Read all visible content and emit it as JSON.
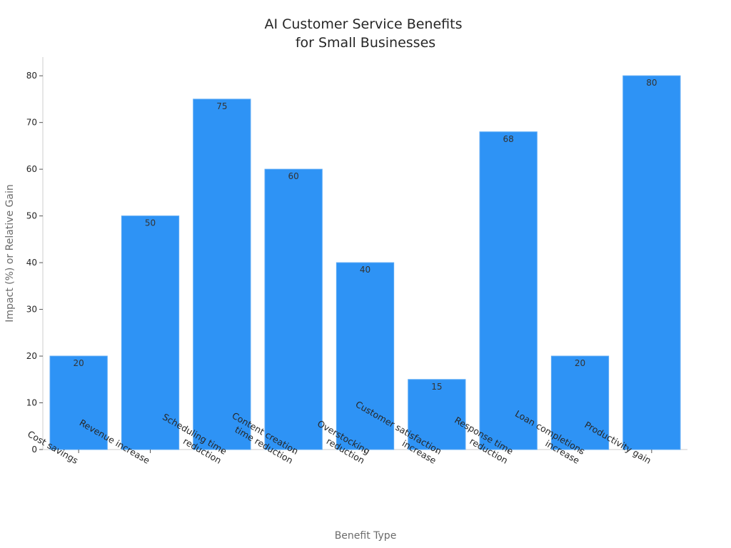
{
  "chart_data": {
    "type": "bar",
    "title": [
      "AI Customer Service Benefits",
      "for Small Businesses"
    ],
    "xlabel": "Benefit Type",
    "ylabel": "Impact (%) or Relative Gain",
    "categories": [
      [
        "Cost savings"
      ],
      [
        "Revenue increase"
      ],
      [
        "Scheduling time",
        "reduction"
      ],
      [
        "Content creation",
        "time reduction"
      ],
      [
        "Overstocking",
        "reduction"
      ],
      [
        "Customer satisfaction",
        "increase"
      ],
      [
        "Response time",
        "reduction"
      ],
      [
        "Loan completions",
        "increase"
      ],
      [
        "Productivity gain"
      ]
    ],
    "values": [
      20,
      50,
      75,
      60,
      40,
      15,
      68,
      20,
      80
    ],
    "value_labels": [
      "20",
      "50",
      "75",
      "60",
      "40",
      "15",
      "68",
      "20",
      "80"
    ],
    "yticks": [
      "0",
      "10",
      "20",
      "30",
      "40",
      "50",
      "60",
      "70",
      "80"
    ],
    "ylim": [
      0,
      84
    ],
    "grid": false,
    "colors": {
      "bar": "#2e93f5",
      "bar_edge": "#5aa9f5",
      "axis": "#cccccc"
    }
  }
}
